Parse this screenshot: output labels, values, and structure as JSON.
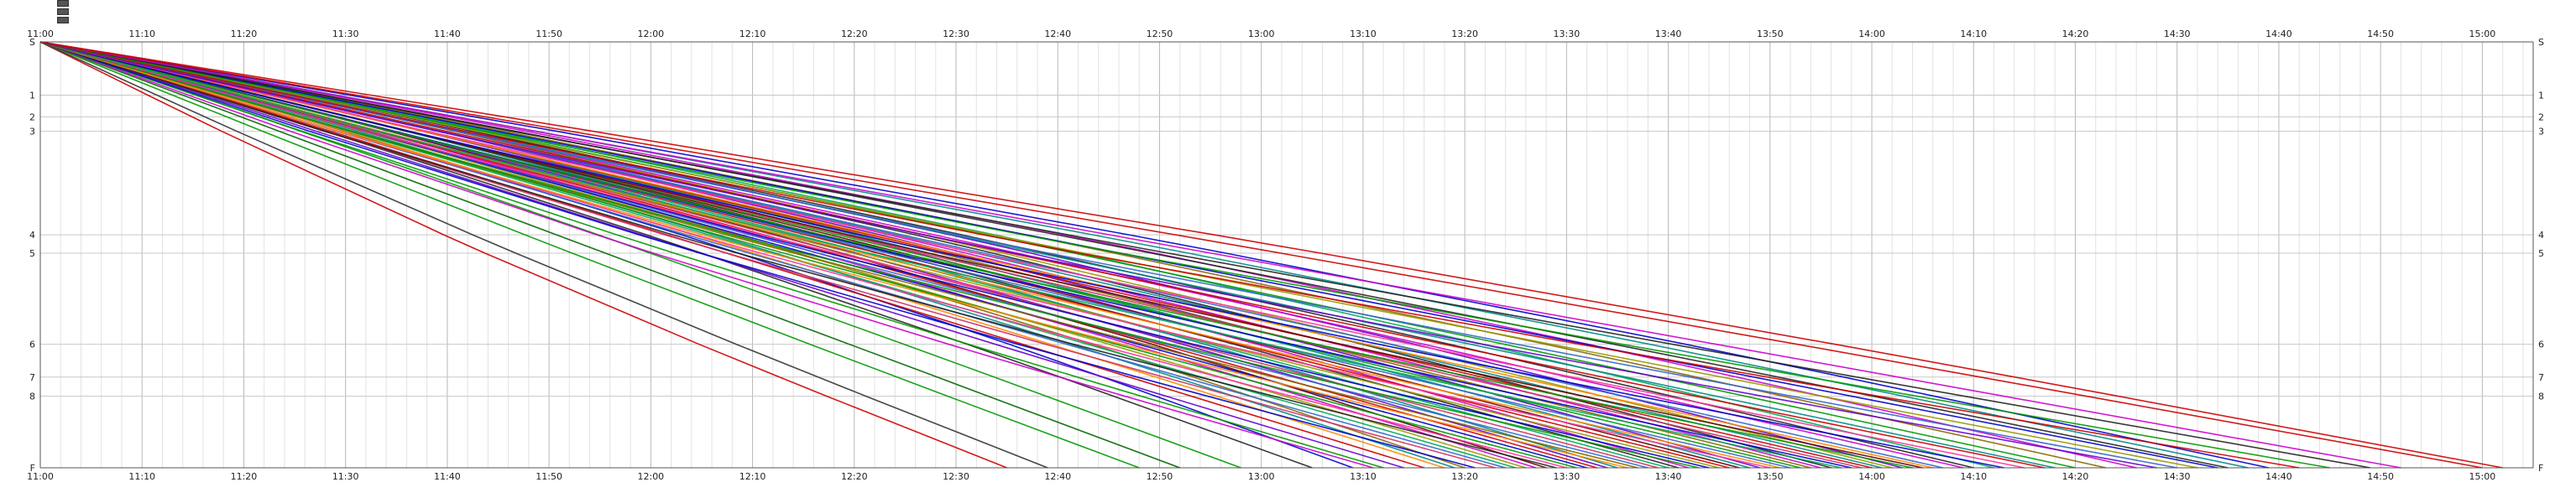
{
  "chart_data": {
    "type": "line",
    "title": "",
    "xlabel": "",
    "ylabel": "",
    "x_ticks": [
      "11:00",
      "11:10",
      "11:20",
      "11:30",
      "11:40",
      "11:50",
      "12:00",
      "12:10",
      "12:20",
      "12:30",
      "12:40",
      "12:50",
      "13:00",
      "13:10",
      "13:20",
      "13:30",
      "13:40",
      "13:50",
      "14:00",
      "14:10",
      "14:20",
      "14:30",
      "14:40",
      "14:50",
      "15:00"
    ],
    "xlim_minutes": [
      0,
      245
    ],
    "stations": [
      {
        "label": "S",
        "pos": 0
      },
      {
        "label": "1",
        "pos": 0.125
      },
      {
        "label": "2",
        "pos": 0.176
      },
      {
        "label": "3",
        "pos": 0.21
      },
      {
        "label": "4",
        "pos": 0.453
      },
      {
        "label": "5",
        "pos": 0.496
      },
      {
        "label": "6",
        "pos": 0.71
      },
      {
        "label": "7",
        "pos": 0.787
      },
      {
        "label": "8",
        "pos": 0.832
      },
      {
        "label": "F",
        "pos": 1.0
      }
    ],
    "series_palette": [
      "#222222",
      "#cc0000",
      "#0000cc",
      "#009900",
      "#cc00cc",
      "#ff8800",
      "#008888",
      "#886600",
      "#6600cc",
      "#00aa55",
      "#cc3366",
      "#3366cc",
      "#999900",
      "#660000",
      "#ff3399"
    ],
    "runners": [
      {
        "finish": 95,
        "label": "",
        "color": "#cc0000"
      },
      {
        "finish": 99,
        "label": "",
        "color": "#333333"
      },
      {
        "finish": 108,
        "label": "",
        "color": "#009900"
      },
      {
        "finish": 112,
        "label": "",
        "color": "#006600"
      },
      {
        "finish": 118,
        "label": "",
        "color": "#009900"
      },
      {
        "finish": 125,
        "label": "",
        "color": "#222222"
      },
      {
        "finish": 129,
        "label": "",
        "color": "#0000cc"
      },
      {
        "finish": 131,
        "label": "",
        "color": "#cc00cc"
      },
      {
        "finish": 132,
        "label": "",
        "color": "#009900"
      },
      {
        "finish": 134,
        "label": "",
        "color": "#6600cc"
      },
      {
        "finish": 136,
        "label": "",
        "color": "#cc0000"
      },
      {
        "finish": 138,
        "label": "",
        "color": "#ff8800"
      },
      {
        "finish": 139,
        "label": "",
        "color": "#008888"
      },
      {
        "finish": 140,
        "label": "",
        "color": "#886600"
      },
      {
        "finish": 141,
        "label": "",
        "color": "#0000cc"
      },
      {
        "finish": 143,
        "label": "",
        "color": "#cc3366"
      },
      {
        "finish": 144,
        "label": "",
        "color": "#3366cc"
      },
      {
        "finish": 145,
        "label": "",
        "color": "#00aa55"
      },
      {
        "finish": 146,
        "label": "",
        "color": "#999900"
      },
      {
        "finish": 147,
        "label": "",
        "color": "#cc00cc"
      },
      {
        "finish": 148,
        "label": "",
        "color": "#660000"
      },
      {
        "finish": 149,
        "label": "",
        "color": "#222222"
      },
      {
        "finish": 150,
        "label": "",
        "color": "#ff3399"
      },
      {
        "finish": 151,
        "label": "",
        "color": "#009900"
      },
      {
        "finish": 152,
        "label": "",
        "color": "#0000cc"
      },
      {
        "finish": 153,
        "label": "",
        "color": "#cc0000"
      },
      {
        "finish": 154,
        "label": "",
        "color": "#6600cc"
      },
      {
        "finish": 155,
        "label": "",
        "color": "#008888"
      },
      {
        "finish": 156,
        "label": "",
        "color": "#ff8800"
      },
      {
        "finish": 157,
        "label": "",
        "color": "#886600"
      },
      {
        "finish": 158,
        "label": "",
        "color": "#3366cc"
      },
      {
        "finish": 159,
        "label": "",
        "color": "#cc3366"
      },
      {
        "finish": 160,
        "label": "",
        "color": "#00aa55"
      },
      {
        "finish": 161,
        "label": "",
        "color": "#222222"
      },
      {
        "finish": 162,
        "label": "",
        "color": "#cc00cc"
      },
      {
        "finish": 163,
        "label": "",
        "color": "#009900"
      },
      {
        "finish": 164,
        "label": "",
        "color": "#0000cc"
      },
      {
        "finish": 165,
        "label": "",
        "color": "#999900"
      },
      {
        "finish": 166,
        "label": "",
        "color": "#cc0000"
      },
      {
        "finish": 167,
        "label": "",
        "color": "#660000"
      },
      {
        "finish": 168,
        "label": "",
        "color": "#008888"
      },
      {
        "finish": 169,
        "label": "",
        "color": "#6600cc"
      },
      {
        "finish": 170,
        "label": "",
        "color": "#ff3399"
      },
      {
        "finish": 171,
        "label": "",
        "color": "#ff8800"
      },
      {
        "finish": 172,
        "label": "",
        "color": "#3366cc"
      },
      {
        "finish": 173,
        "label": "",
        "color": "#009900"
      },
      {
        "finish": 174,
        "label": "",
        "color": "#886600"
      },
      {
        "finish": 175,
        "label": "",
        "color": "#cc00cc"
      },
      {
        "finish": 176,
        "label": "",
        "color": "#222222"
      },
      {
        "finish": 177,
        "label": "",
        "color": "#00aa55"
      },
      {
        "finish": 178,
        "label": "",
        "color": "#0000cc"
      },
      {
        "finish": 179,
        "label": "",
        "color": "#cc3366"
      },
      {
        "finish": 180,
        "label": "",
        "color": "#cc0000"
      },
      {
        "finish": 181,
        "label": "",
        "color": "#008888"
      },
      {
        "finish": 182,
        "label": "",
        "color": "#999900"
      },
      {
        "finish": 183,
        "label": "",
        "color": "#6600cc"
      },
      {
        "finish": 184,
        "label": "",
        "color": "#009900"
      },
      {
        "finish": 185,
        "label": "",
        "color": "#660000"
      },
      {
        "finish": 186,
        "label": "",
        "color": "#ff8800"
      },
      {
        "finish": 187,
        "label": "",
        "color": "#3366cc"
      },
      {
        "finish": 189,
        "label": "",
        "color": "#cc00cc"
      },
      {
        "finish": 190,
        "label": "",
        "color": "#222222"
      },
      {
        "finish": 192,
        "label": "",
        "color": "#00aa55"
      },
      {
        "finish": 193,
        "label": "",
        "color": "#0000cc"
      },
      {
        "finish": 195,
        "label": "",
        "color": "#ff3399"
      },
      {
        "finish": 197,
        "label": "",
        "color": "#cc0000"
      },
      {
        "finish": 198,
        "label": "",
        "color": "#008888"
      },
      {
        "finish": 200,
        "label": "",
        "color": "#009900"
      },
      {
        "finish": 203,
        "label": "",
        "color": "#886600"
      },
      {
        "finish": 206,
        "label": "",
        "color": "#cc00cc"
      },
      {
        "finish": 208,
        "label": "",
        "color": "#6600cc"
      },
      {
        "finish": 210,
        "label": "",
        "color": "#3366cc"
      },
      {
        "finish": 212,
        "label": "",
        "color": "#999900"
      },
      {
        "finish": 214,
        "label": "",
        "color": "#0000cc"
      },
      {
        "finish": 215,
        "label": "",
        "color": "#222222"
      },
      {
        "finish": 217,
        "label": "",
        "color": "#008888"
      },
      {
        "finish": 219,
        "label": "",
        "color": "#0000cc"
      },
      {
        "finish": 222,
        "label": "",
        "color": "#cc0000"
      },
      {
        "finish": 225,
        "label": "",
        "color": "#009900"
      },
      {
        "finish": 229,
        "label": "",
        "color": "#222222"
      },
      {
        "finish": 232,
        "label": "",
        "color": "#cc00cc"
      },
      {
        "finish": 240,
        "label": "",
        "color": "#cc0000"
      },
      {
        "finish": 242,
        "label": "",
        "color": "#cc0000"
      }
    ]
  }
}
